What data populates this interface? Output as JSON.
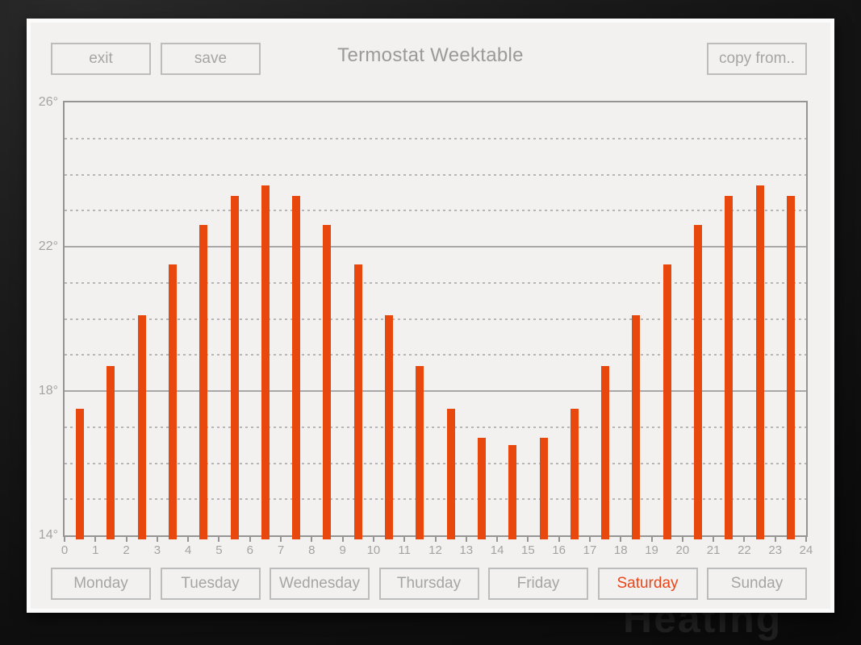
{
  "header": {
    "exit_label": "exit",
    "save_label": "save",
    "title": "Termostat Weektable",
    "copy_from_label": "copy from.."
  },
  "chart_data": {
    "type": "bar",
    "title": "Termostat Weektable",
    "xlabel": "",
    "ylabel": "",
    "unit": "°",
    "x": [
      0,
      1,
      2,
      3,
      4,
      5,
      6,
      7,
      8,
      9,
      10,
      11,
      12,
      13,
      14,
      15,
      16,
      17,
      18,
      19,
      20,
      21,
      22,
      23
    ],
    "values": [
      17.5,
      18.7,
      20.1,
      21.5,
      22.6,
      23.4,
      23.7,
      23.4,
      22.6,
      21.5,
      20.1,
      18.7,
      17.5,
      16.7,
      16.5,
      16.7,
      17.5,
      18.7,
      20.1,
      21.5,
      22.6,
      23.4,
      23.7,
      23.4
    ],
    "ylim": [
      14,
      26
    ],
    "xlim": [
      0,
      24
    ],
    "y_ticks": [
      26,
      22,
      18,
      14
    ],
    "y_tick_labels": [
      "26°",
      "22°",
      "18°",
      "14°"
    ],
    "x_tick_labels": [
      "0",
      "1",
      "2",
      "3",
      "4",
      "5",
      "6",
      "7",
      "8",
      "9",
      "10",
      "11",
      "12",
      "13",
      "14",
      "15",
      "16",
      "17",
      "18",
      "19",
      "20",
      "21",
      "22",
      "23",
      "24"
    ],
    "grid_solid_at": [
      22,
      18
    ],
    "grid_dashed_at": [
      25,
      24,
      23,
      21,
      20,
      19,
      17,
      16,
      15
    ],
    "legend": null,
    "bar_color": "#e8480e"
  },
  "days": {
    "items": [
      {
        "label": "Monday",
        "active": false
      },
      {
        "label": "Tuesday",
        "active": false
      },
      {
        "label": "Wednesday",
        "active": false
      },
      {
        "label": "Thursday",
        "active": false
      },
      {
        "label": "Friday",
        "active": false
      },
      {
        "label": "Saturday",
        "active": true
      },
      {
        "label": "Sunday",
        "active": false
      }
    ],
    "active_text_color": "#ea4517",
    "inactive_text_color": "#a5a5a5"
  },
  "watermark": "Heating",
  "colors": {
    "accent": "#e8480e",
    "panel_bg": "#f2f1f0",
    "grid_solid": "#a8a8a8",
    "grid_dashed": "#b6b6b6",
    "tick_text": "#a3a3a3"
  }
}
